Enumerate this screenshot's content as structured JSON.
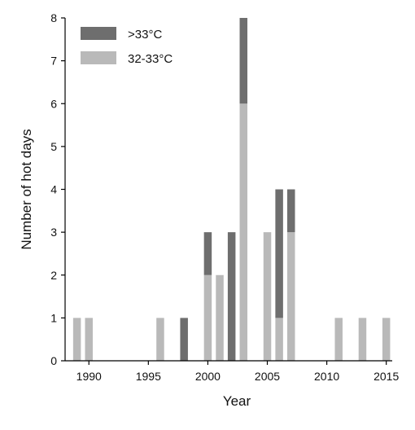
{
  "chart_data": {
    "type": "bar",
    "stacked": true,
    "xlabel": "Year",
    "ylabel": "Number of hot days",
    "xlim": [
      1988,
      2015.5
    ],
    "ylim": [
      0,
      8
    ],
    "x_ticks": [
      1990,
      1995,
      2000,
      2005,
      2010,
      2015
    ],
    "y_ticks": [
      0,
      1,
      2,
      3,
      4,
      5,
      6,
      7,
      8
    ],
    "x": [
      1989,
      1990,
      1996,
      1998,
      2000,
      2001,
      2002,
      2003,
      2005,
      2006,
      2007,
      2011,
      2013,
      2015
    ],
    "series": [
      {
        "name": "32-33°C",
        "color": "#b9b9b9",
        "values": [
          1,
          1,
          1,
          0,
          2,
          2,
          0,
          6,
          3,
          1,
          3,
          1,
          1,
          1
        ]
      },
      {
        "name": ">33°C",
        "color": "#6e6e6e",
        "values": [
          0,
          0,
          0,
          1,
          1,
          0,
          3,
          2,
          0,
          3,
          1,
          0,
          0,
          0
        ]
      }
    ],
    "legend_order": [
      ">33°C",
      "32-33°C"
    ],
    "legend_position": "top-left",
    "grid": false
  }
}
